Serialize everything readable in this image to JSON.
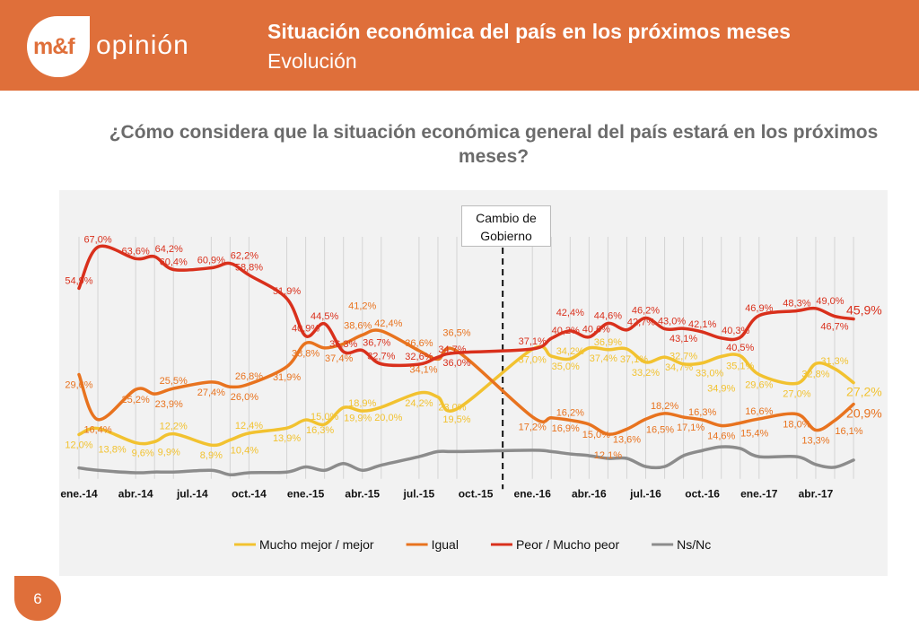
{
  "header": {
    "logo_mark": "m&f",
    "logo_text": "opinión",
    "title": "Situación económica del país en los próximos meses",
    "subtitle": "Evolución"
  },
  "question": "¿Cómo considera que la situación económica general del país estará en los próximos meses?",
  "page_number": "6",
  "colors": {
    "brand": "#DF6F3A",
    "mejor": "#F2C230",
    "igual": "#E8731F",
    "peor": "#D9301C",
    "nsnc": "#8C8C8C",
    "panel": "#F2F2F2"
  },
  "chart_data": {
    "type": "line",
    "title": "",
    "xlabel": "",
    "ylabel": "",
    "annotation": "Cambio de Gobierno",
    "annotation_x": "2015-12",
    "x_tick_labels": [
      "ene.-14",
      "abr.-14",
      "jul.-14",
      "oct.-14",
      "ene.-15",
      "abr.-15",
      "jul.-15",
      "oct.-15",
      "ene.-16",
      "abr.-16",
      "jul.-16",
      "oct.-16",
      "ene.-17",
      "abr.-17"
    ],
    "x_ticks": [
      "2014-01",
      "2014-04",
      "2014-07",
      "2014-10",
      "2015-01",
      "2015-04",
      "2015-07",
      "2015-10",
      "2016-01",
      "2016-04",
      "2016-07",
      "2016-10",
      "2017-01",
      "2017-04"
    ],
    "legend_position": "bottom",
    "grid": "vertical lines at survey dates",
    "x": [
      "2014-01",
      "2014-02",
      "2014-04",
      "2014-05",
      "2014-06",
      "2014-08",
      "2014-09",
      "2014-10",
      "2014-12",
      "2015-01",
      "2015-02",
      "2015-03",
      "2015-04",
      "2015-05",
      "2015-07",
      "2015-08",
      "2015-09",
      "2016-01",
      "2016-02",
      "2016-03",
      "2016-04",
      "2016-05",
      "2016-06",
      "2016-07",
      "2016-08",
      "2016-09",
      "2016-10",
      "2016-11",
      "2016-12",
      "2017-01",
      "2017-03",
      "2017-04",
      "2017-05",
      "2017-06"
    ],
    "series": [
      {
        "name": "Mucho mejor / mejor",
        "color": "#F2C230",
        "labels": true,
        "values": [
          12.0,
          13.8,
          9.6,
          9.9,
          12.2,
          8.9,
          10.4,
          12.4,
          13.9,
          16.3,
          15.0,
          19.9,
          18.9,
          20.0,
          24.2,
          23.0,
          19.5,
          37.0,
          35.0,
          34.2,
          37.4,
          36.9,
          37.1,
          33.2,
          34.7,
          32.7,
          33.0,
          34.9,
          35.1,
          29.6,
          27.0,
          32.8,
          31.3,
          27.2
        ]
      },
      {
        "name": "Igual",
        "color": "#E8731F",
        "labels": true,
        "values": [
          29.6,
          16.4,
          25.2,
          23.9,
          25.5,
          27.4,
          26.0,
          26.8,
          31.9,
          38.8,
          37.4,
          38.6,
          41.2,
          42.4,
          36.6,
          34.1,
          36.5,
          17.2,
          16.9,
          16.2,
          15.0,
          12.1,
          13.6,
          16.5,
          18.2,
          17.1,
          16.3,
          14.6,
          15.4,
          16.6,
          18.0,
          13.3,
          16.1,
          20.9
        ]
      },
      {
        "name": "Peor / Mucho peor",
        "color": "#D9301C",
        "labels": true,
        "values": [
          54.9,
          67.0,
          63.6,
          64.2,
          60.4,
          60.9,
          62.2,
          58.8,
          51.9,
          40.9,
          44.5,
          36.3,
          36.7,
          32.7,
          32.6,
          34.7,
          36.0,
          37.1,
          40.2,
          42.4,
          40.6,
          44.6,
          42.7,
          46.2,
          43.0,
          43.1,
          42.1,
          40.3,
          40.5,
          46.9,
          48.3,
          49.0,
          46.7,
          45.9
        ]
      },
      {
        "name": "Ns/Nc",
        "color": "#8C8C8C",
        "labels": false,
        "values": [
          2.2,
          1.5,
          0.8,
          1.0,
          1.0,
          1.5,
          0.2,
          0.8,
          1.0,
          2.5,
          1.5,
          3.5,
          1.5,
          3.0,
          5.5,
          7.0,
          7.0,
          7.4,
          7.0,
          6.3,
          5.8,
          5.0,
          5.0,
          2.6,
          2.6,
          5.8,
          7.3,
          8.4,
          7.9,
          5.5,
          5.5,
          3.2,
          2.4,
          4.5
        ]
      }
    ]
  }
}
